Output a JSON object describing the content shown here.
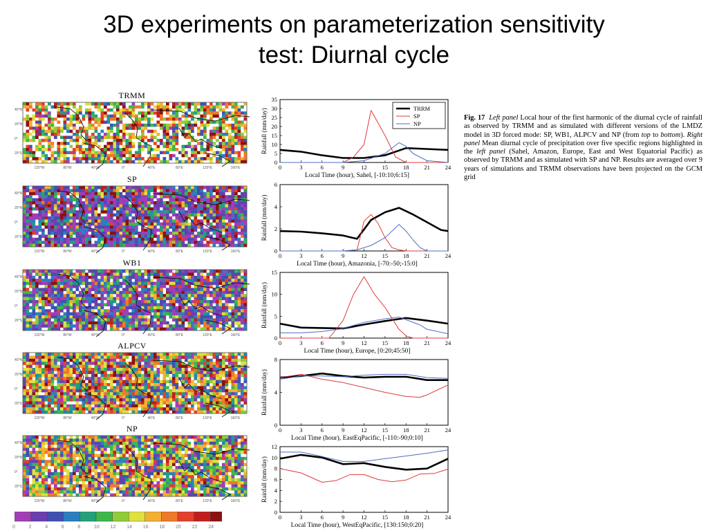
{
  "slide": {
    "title_line1": "3D experiments on parameterization sensitivity",
    "title_line2": "test: Diurnal cycle"
  },
  "maps": {
    "panels": [
      {
        "title": "TRMM"
      },
      {
        "title": "SP"
      },
      {
        "title": "WB1"
      },
      {
        "title": "ALPCV"
      },
      {
        "title": "NP"
      }
    ],
    "lat_labels": [
      "40°N",
      "20°N",
      "0°",
      "20°S"
    ],
    "lon_labels": [
      "120°W",
      "80°W",
      "40°W",
      "0°",
      "40°E",
      "80°E",
      "120°E",
      "160°E"
    ],
    "colorbar": {
      "colors": [
        "#a23db8",
        "#6a3fb0",
        "#4050b0",
        "#2a7fbf",
        "#22a07a",
        "#3cb84a",
        "#8fcc3a",
        "#e0e040",
        "#f3b030",
        "#ee7a28",
        "#e2402a",
        "#c01e1e",
        "#8e1010"
      ],
      "ticks": [
        "0",
        "2",
        "4",
        "6",
        "8",
        "10",
        "12",
        "14",
        "16",
        "18",
        "20",
        "22",
        "24"
      ]
    }
  },
  "chart_data": [
    {
      "type": "line",
      "region": "Sahel",
      "x": [
        0,
        3,
        6,
        9,
        12,
        15,
        18,
        21,
        24
      ],
      "xticks": [
        "0",
        "3",
        "6",
        "9",
        "12",
        "15",
        "18",
        "21",
        "24"
      ],
      "ylim": [
        0,
        35
      ],
      "yticks": [
        "0",
        "5",
        "10",
        "15",
        "20",
        "25",
        "30",
        "35"
      ],
      "ylabel": "Rainfall (mm/day)",
      "xlabel": "Local Time (hour), Sahel, [-10:10;6:15]",
      "legend": [
        "TRRM",
        "SP",
        "NP"
      ],
      "series": [
        {
          "name": "TRRM",
          "color": "#000000",
          "width": 2.6,
          "x": [
            0,
            3,
            6,
            9,
            12,
            15,
            18,
            21,
            24
          ],
          "values": [
            7,
            6,
            4,
            2.5,
            2.5,
            4,
            8,
            7.5,
            7
          ]
        },
        {
          "name": "SP",
          "color": "#e03a3a",
          "width": 1,
          "x": [
            0,
            3,
            6,
            9,
            10.5,
            12,
            13,
            15,
            16.5,
            18,
            19,
            24
          ],
          "values": [
            0,
            0,
            0,
            0,
            3,
            10,
            29,
            15,
            3,
            0,
            0,
            0
          ]
        },
        {
          "name": "NP",
          "color": "#4c6cc0",
          "width": 1,
          "x": [
            0,
            3,
            6,
            9,
            12,
            15,
            17,
            18,
            19,
            21,
            24
          ],
          "values": [
            0,
            0,
            0,
            0,
            1,
            5,
            11,
            9,
            5,
            1,
            0
          ]
        }
      ]
    },
    {
      "type": "line",
      "region": "Amazonia",
      "x": [
        0,
        3,
        6,
        9,
        12,
        15,
        18,
        21,
        24
      ],
      "xticks": [
        "0",
        "3",
        "6",
        "9",
        "12",
        "15",
        "18",
        "21",
        "24"
      ],
      "ylim": [
        0,
        6
      ],
      "yticks": [
        "0",
        "2",
        "4",
        "6"
      ],
      "ylabel": "Rainfall (mm/day)",
      "xlabel": "Local Time (hour), Amazonia, [-70:-50;-15:0]",
      "series": [
        {
          "name": "TRMM",
          "color": "#000000",
          "width": 2.6,
          "x": [
            0,
            3,
            6,
            9,
            11,
            13,
            15,
            17,
            19,
            21,
            23,
            24
          ],
          "values": [
            1.8,
            1.75,
            1.6,
            1.4,
            1.1,
            2.8,
            3.5,
            3.9,
            3.3,
            2.6,
            1.9,
            1.8
          ]
        },
        {
          "name": "SP",
          "color": "#e03a3a",
          "width": 1,
          "x": [
            0,
            3,
            6,
            9,
            11,
            12,
            13,
            14,
            15,
            16,
            17,
            18,
            19,
            21,
            24
          ],
          "values": [
            0,
            0,
            0,
            0,
            0.1,
            2.7,
            3.3,
            2.5,
            1.2,
            0.3,
            0.1,
            0,
            0,
            0,
            0
          ]
        },
        {
          "name": "NP",
          "color": "#4c6cc0",
          "width": 1,
          "x": [
            0,
            3,
            6,
            9,
            11,
            13,
            15,
            16,
            17,
            18,
            19,
            20,
            21,
            24
          ],
          "values": [
            0,
            0,
            0,
            0,
            0.1,
            0.5,
            1.2,
            1.8,
            2.4,
            1.8,
            1,
            0.3,
            0,
            0
          ]
        }
      ]
    },
    {
      "type": "line",
      "region": "Europe",
      "x": [
        0,
        3,
        6,
        9,
        12,
        15,
        18,
        21,
        24
      ],
      "xticks": [
        "0",
        "3",
        "6",
        "9",
        "12",
        "15",
        "18",
        "21",
        "24"
      ],
      "ylim": [
        0,
        15
      ],
      "yticks": [
        "0",
        "5",
        "10",
        "15"
      ],
      "ylabel": "Rainfall (mm/day)",
      "xlabel": "Local Time (hour), Europe, [0:20;45:50]",
      "series": [
        {
          "name": "TRMM",
          "color": "#000000",
          "width": 2.6,
          "x": [
            0,
            3,
            6,
            9,
            12,
            15,
            18,
            21,
            24
          ],
          "values": [
            3.3,
            2.4,
            2.3,
            2.2,
            3.1,
            3.9,
            4.6,
            4,
            3.3
          ]
        },
        {
          "name": "SP",
          "color": "#e03a3a",
          "width": 1,
          "x": [
            0,
            3,
            6,
            7,
            9,
            10.5,
            12,
            13.5,
            15,
            17,
            18,
            19,
            21,
            24
          ],
          "values": [
            0,
            0,
            0,
            0,
            4,
            10,
            14,
            10,
            7,
            2,
            0.5,
            0,
            0,
            0
          ]
        },
        {
          "name": "NP",
          "color": "#4c6cc0",
          "width": 1,
          "x": [
            0,
            3,
            6,
            9,
            12,
            15,
            17,
            18,
            20,
            21,
            24
          ],
          "values": [
            1.2,
            1.2,
            1.5,
            2.2,
            3.6,
            4.4,
            4.8,
            4.2,
            3,
            2,
            1
          ]
        }
      ]
    },
    {
      "type": "line",
      "region": "EastEqPacific",
      "x": [
        0,
        3,
        6,
        9,
        12,
        15,
        18,
        21,
        24
      ],
      "xticks": [
        "0",
        "3",
        "6",
        "9",
        "12",
        "15",
        "18",
        "21",
        "24"
      ],
      "ylim": [
        0,
        8
      ],
      "yticks": [
        "0",
        "4",
        "8"
      ],
      "ylabel": "Rainfall (mm/day)",
      "xlabel": "Local Time (hour), EastEqPacific, [-110:-90;0:10]",
      "series": [
        {
          "name": "TRMM",
          "color": "#000000",
          "width": 2.6,
          "x": [
            0,
            3,
            6,
            9,
            12,
            15,
            18,
            21,
            24
          ],
          "values": [
            5.8,
            6,
            6.3,
            6,
            5.8,
            5.9,
            5.9,
            5.5,
            5.5
          ]
        },
        {
          "name": "SP",
          "color": "#e03a3a",
          "width": 1,
          "x": [
            0,
            3,
            6,
            9,
            12,
            15,
            18,
            20,
            21,
            24
          ],
          "values": [
            5.8,
            6.2,
            5.6,
            5.2,
            4.6,
            4,
            3.5,
            3.4,
            3.7,
            4.9
          ]
        },
        {
          "name": "NP",
          "color": "#4c6cc0",
          "width": 1,
          "x": [
            0,
            3,
            6,
            9,
            12,
            15,
            18,
            21,
            24
          ],
          "values": [
            5.6,
            6,
            6,
            5.9,
            6.1,
            6.2,
            6.2,
            5.8,
            5.7
          ]
        }
      ]
    },
    {
      "type": "line",
      "region": "WestEqPacific",
      "x": [
        0,
        3,
        6,
        9,
        12,
        15,
        18,
        21,
        24
      ],
      "xticks": [
        "0",
        "3",
        "6",
        "9",
        "12",
        "15",
        "18",
        "21",
        "24"
      ],
      "ylim": [
        0,
        12
      ],
      "yticks": [
        "0",
        "2",
        "4",
        "6",
        "8",
        "10",
        "12"
      ],
      "ylabel": "Rainfall (mm/day)",
      "xlabel": "Local Time (hour), WestEqPacific, [130:150;0:20]",
      "series": [
        {
          "name": "TRMM",
          "color": "#000000",
          "width": 2.6,
          "x": [
            0,
            3,
            6,
            9,
            12,
            15,
            18,
            21,
            24
          ],
          "values": [
            9.8,
            10.5,
            10,
            8.8,
            9,
            8.3,
            7.8,
            8,
            9.8
          ]
        },
        {
          "name": "SP",
          "color": "#e03a3a",
          "width": 1,
          "x": [
            0,
            3,
            6,
            8,
            10,
            12,
            14,
            16,
            18,
            20,
            22,
            24
          ],
          "values": [
            8,
            7.2,
            5.5,
            5.8,
            6.9,
            6.9,
            6,
            5.6,
            5.9,
            7,
            7.1,
            7.9
          ]
        },
        {
          "name": "NP",
          "color": "#4c6cc0",
          "width": 1,
          "x": [
            0,
            3,
            6,
            9,
            12,
            15,
            18,
            21,
            24
          ],
          "values": [
            11,
            11,
            10.2,
            9.3,
            9.3,
            9.8,
            10.3,
            10.8,
            11.4
          ]
        }
      ]
    }
  ],
  "caption": {
    "fig_label": "Fig. 17",
    "left_panel_label": "Left panel",
    "text_1": " Local hour of the first harmonic of the diurnal cycle of rainfall as observed by TRMM and as simulated with different versions of the LMDZ model in 3D forced mode: SP, WB1, ALPCV and NP (from ",
    "top_word": "top",
    "text_2": " to ",
    "bottom_word": "bottom",
    "text_3": "). ",
    "right_panel_label": "Right panel",
    "text_4": " Mean diurnal cycle of precipitation over five specific regions highlighted in the ",
    "left_panel_label_2": "left panel",
    "text_5": " (Sahel, Amazon, Europe, East and West Equatorial Pacific) as observed by TRMM and as simulated with SP and NP. Results are averaged over 9 years of simulations and TRMM observations have been projected on the GCM grid"
  }
}
